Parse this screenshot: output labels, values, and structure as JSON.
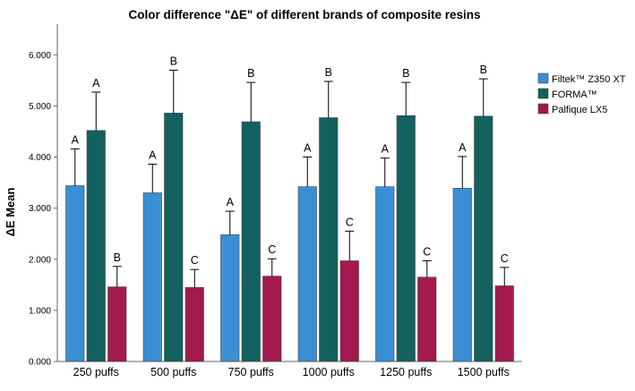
{
  "chart_data": {
    "type": "bar",
    "title": "Color difference \"ΔE\" of different brands of composite resins",
    "xlabel": "",
    "ylabel": "ΔE Mean",
    "ylim": [
      0,
      6.6
    ],
    "yticks": [
      0,
      1,
      2,
      3,
      4,
      5,
      6
    ],
    "ytick_labels": [
      "0.000",
      "1.000",
      "2.000",
      "3.000",
      "4.000",
      "5.000",
      "6.000"
    ],
    "categories": [
      "250 puffs",
      "500 puffs",
      "750 puffs",
      "1000 puffs",
      "1250 puffs",
      "1500 puffs"
    ],
    "grid": false,
    "legend_position": "right",
    "series": [
      {
        "name": "Filtek™ Z350 XT",
        "color": "#3a8fd4",
        "values": [
          3.44,
          3.3,
          2.48,
          3.42,
          3.42,
          3.39
        ],
        "errors": [
          0.72,
          0.56,
          0.46,
          0.58,
          0.56,
          0.62
        ],
        "letters": [
          "A",
          "A",
          "A",
          "A",
          "A",
          "A"
        ]
      },
      {
        "name": "FORMA™",
        "color": "#13615e",
        "values": [
          4.52,
          4.86,
          4.69,
          4.77,
          4.81,
          4.8
        ],
        "errors": [
          0.75,
          0.84,
          0.77,
          0.71,
          0.65,
          0.73
        ],
        "letters": [
          "A",
          "B",
          "B",
          "B",
          "B",
          "B"
        ]
      },
      {
        "name": "Palfique LX5",
        "color": "#a31a4f",
        "values": [
          1.46,
          1.45,
          1.67,
          1.97,
          1.65,
          1.48
        ],
        "errors": [
          0.4,
          0.35,
          0.34,
          0.58,
          0.32,
          0.36
        ],
        "letters": [
          "B",
          "C",
          "C",
          "C",
          "C",
          "C"
        ]
      }
    ]
  }
}
